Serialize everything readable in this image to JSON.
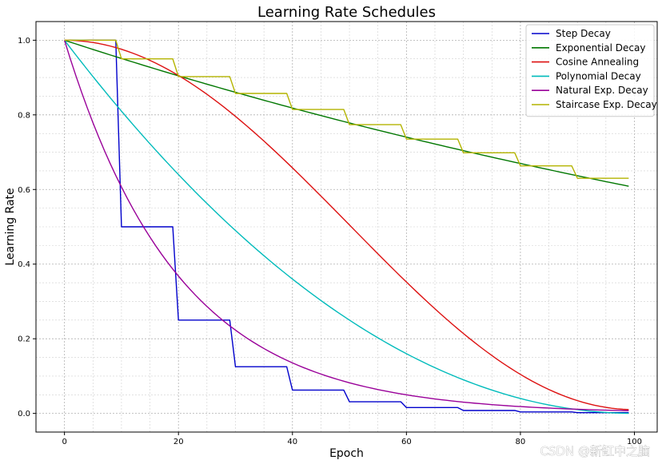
{
  "chart_data": {
    "type": "line",
    "title": "Learning Rate Schedules",
    "xlabel": "Epoch",
    "ylabel": "Learning Rate",
    "xlim": [
      -5,
      104
    ],
    "ylim": [
      -0.05,
      1.05
    ],
    "xticks": [
      0,
      20,
      40,
      60,
      80,
      100
    ],
    "xtick_labels": [
      "0",
      "20",
      "40",
      "60",
      "80",
      "100"
    ],
    "yticks": [
      0.0,
      0.2,
      0.4,
      0.6,
      0.8,
      1.0
    ],
    "ytick_labels": [
      "0.0",
      "0.2",
      "0.4",
      "0.6",
      "0.8",
      "1.0"
    ],
    "grid": true,
    "minor_grid": true,
    "legend_position": "top-right",
    "epochs": {
      "start": 0,
      "end": 99
    },
    "series": [
      {
        "name": "Step Decay",
        "color": "#0000cc",
        "kind": "step",
        "initial": 1.0,
        "factor": 0.5,
        "step_size": 10
      },
      {
        "name": "Exponential Decay",
        "color": "#007700",
        "kind": "exponential",
        "initial": 1.0,
        "rate": 0.995
      },
      {
        "name": "Cosine Annealing",
        "color": "#dd1111",
        "kind": "cosine",
        "initial": 1.0,
        "min": 0.01,
        "period": 100
      },
      {
        "name": "Polynomial Decay",
        "color": "#00bbbb",
        "kind": "polynomial",
        "initial": 1.0,
        "end": 0.0,
        "power": 2,
        "total": 100
      },
      {
        "name": "Natural Exp. Decay",
        "color": "#990099",
        "kind": "natural_exp",
        "initial": 1.0,
        "k": 0.05
      },
      {
        "name": "Staircase Exp. Decay",
        "color": "#b4b400",
        "kind": "staircase",
        "initial": 1.0,
        "rate": 0.95,
        "step_size": 10
      }
    ]
  },
  "watermark": "CSDN @新缸中之脑"
}
